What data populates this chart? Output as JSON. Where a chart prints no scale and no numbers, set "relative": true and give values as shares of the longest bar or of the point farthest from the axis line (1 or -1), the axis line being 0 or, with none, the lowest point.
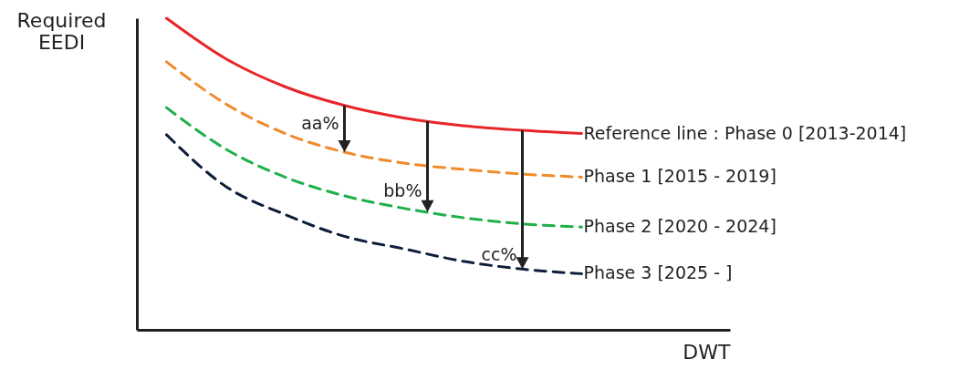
{
  "chart_data": {
    "type": "line",
    "relative": true,
    "xlabel": "DWT",
    "ylabel": "Required EEDI",
    "categories": [
      null,
      null,
      null,
      null,
      null,
      null,
      null,
      null,
      null,
      null
    ],
    "series": [
      {
        "name": "Reference line : Phase 0  [2013-2014]",
        "color": "#e8262a",
        "line_style": "solid",
        "values": [
          1.0,
          0.87,
          0.78,
          0.72,
          0.68,
          0.655,
          0.64,
          0.63,
          null,
          null
        ]
      },
      {
        "name": "Phase 1   [2015 - 2019]",
        "color": "#f08a2c",
        "line_style": "dashed",
        "values": [
          0.86,
          0.725,
          0.63,
          0.57,
          0.535,
          0.515,
          0.5,
          0.49,
          null,
          null
        ]
      },
      {
        "name": "Phase 2   [2020 - 2024]",
        "color": "#1fb04a",
        "line_style": "dashed",
        "values": [
          0.713,
          0.58,
          0.49,
          0.43,
          0.39,
          0.36,
          0.34,
          0.33,
          null,
          null
        ]
      },
      {
        "name": "Phase 3   [2025 - ]",
        "color": "#0e1e3a",
        "line_style": "dashed",
        "values": [
          0.626,
          0.46,
          0.37,
          0.3,
          0.26,
          0.22,
          0.195,
          0.18,
          null,
          null
        ]
      }
    ],
    "annotations": [
      "aa%",
      "bb%",
      "cc%"
    ]
  }
}
